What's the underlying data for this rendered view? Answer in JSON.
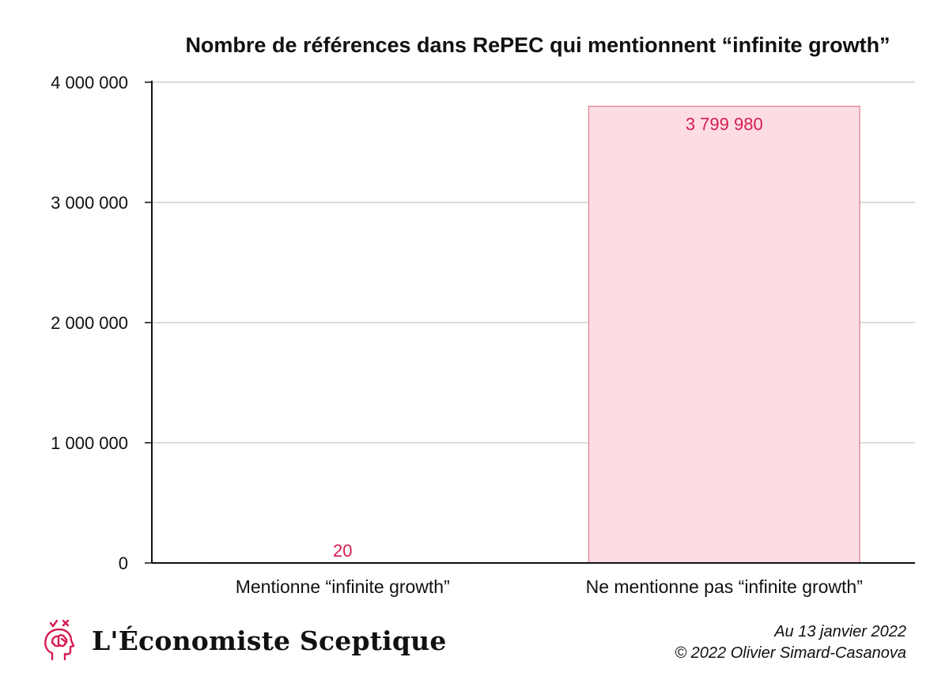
{
  "chart_data": {
    "type": "bar",
    "title": "Nombre de références dans RePEC qui mentionnent “infinite growth”",
    "categories": [
      "Mentionne “infinite growth”",
      "Ne mentionne pas “infinite growth”"
    ],
    "values": [
      20,
      3799980
    ],
    "value_labels": [
      "20",
      "3 799 980"
    ],
    "xlabel": "",
    "ylabel": "",
    "ylim": [
      0,
      4000000
    ],
    "yticks": [
      0,
      1000000,
      2000000,
      3000000,
      4000000
    ],
    "ytick_labels": [
      "0",
      "1 000 000",
      "2 000 000",
      "3 000 000",
      "4 000 000"
    ],
    "grid": true,
    "bar_fill": "#fddde3",
    "bar_stroke": "#e07d93",
    "label_color": "#d81b50",
    "grid_color": "#c8c8c8",
    "axis_color": "#111111"
  },
  "footer": {
    "brand": "L'Économiste Sceptique",
    "logo_icon": "brain-head-icon",
    "logo_color": "#d81b50",
    "date": "Au 13 janvier 2022",
    "copyright": "© 2022 Olivier Simard-Casanova"
  }
}
